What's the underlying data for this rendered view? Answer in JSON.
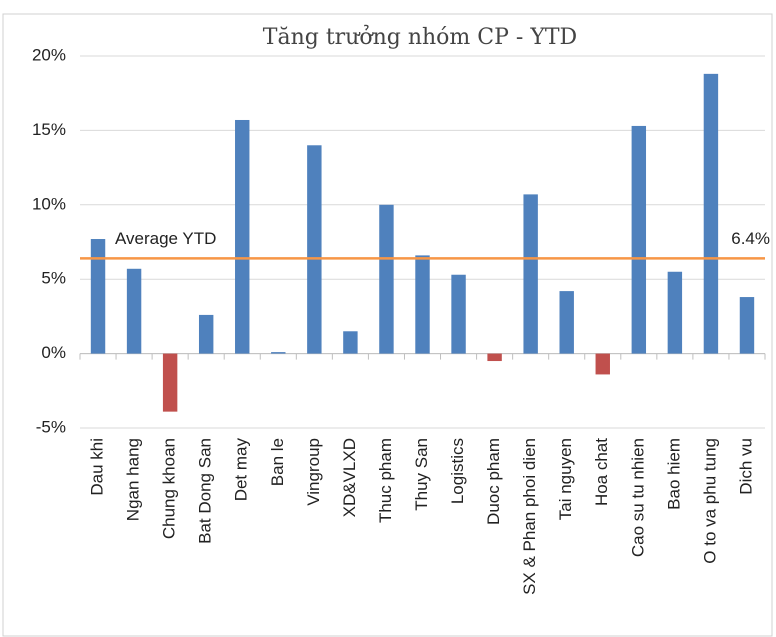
{
  "chart_data": {
    "type": "bar",
    "title": "Tăng trưởng nhóm CP - YTD",
    "categories": [
      "Dau khi",
      "Ngan hang",
      "Chung khoan",
      "Bat Dong San",
      "Det may",
      "Ban le",
      "Vingroup",
      "XD&VLXD",
      "Thuc pham",
      "Thuy San",
      "Logistics",
      "Duoc pham",
      "SX & Phan phoi dien",
      "Tai nguyen",
      "Hoa chat",
      "Cao su tu nhien",
      "Bao hiem",
      "O to va phu tung",
      "Dich vu"
    ],
    "values": [
      7.7,
      5.7,
      -3.9,
      2.6,
      15.7,
      0.1,
      14.0,
      1.5,
      10.0,
      6.6,
      5.3,
      -0.5,
      10.7,
      4.2,
      -1.4,
      15.3,
      5.5,
      18.8,
      3.8
    ],
    "color": "#4f81bd",
    "negative_color": "#c0504d",
    "ylim": [
      -5,
      20
    ],
    "yticks": [
      {
        "value": -5,
        "label": "-5%"
      },
      {
        "value": 0,
        "label": "0%"
      },
      {
        "value": 5,
        "label": "5%"
      },
      {
        "value": 10,
        "label": "10%"
      },
      {
        "value": 15,
        "label": "15%"
      },
      {
        "value": 20,
        "label": "20%"
      }
    ],
    "grid": true,
    "reference_line": {
      "name": "Average YTD",
      "value": 6.4,
      "value_label": "6.4%",
      "color": "#f79646"
    }
  }
}
